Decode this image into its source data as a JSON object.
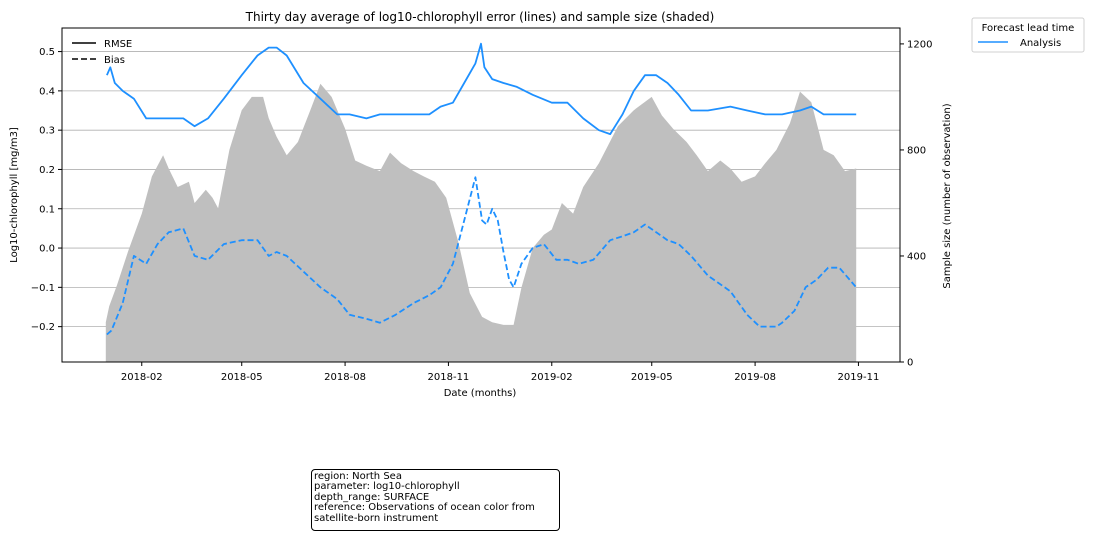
{
  "chart_data": {
    "type": "line",
    "title": "Thirty day average of log10-chlorophyll error (lines) and sample size (shaded)",
    "xlabel": "Date (months)",
    "ylabel": "Log10-chlorophyll [mg/m3]",
    "y2label": "Sample size (number of observation)",
    "x_ticks": [
      "2018-02",
      "2018-05",
      "2018-08",
      "2018-11",
      "2019-02",
      "2019-05",
      "2019-08",
      "2019-11"
    ],
    "y_ticks": [
      "−0.2",
      "−0.1",
      "0.0",
      "0.1",
      "0.2",
      "0.3",
      "0.4",
      "0.5"
    ],
    "y2_ticks": [
      "0",
      "400",
      "800",
      "1200"
    ],
    "ylim": [
      -0.29,
      0.56
    ],
    "y2lim": [
      0,
      1260
    ],
    "xlim": [
      "2017-11-22",
      "2019-12-08"
    ],
    "grid": "y-major",
    "style_legend": [
      {
        "label": "RMSE",
        "linestyle": "solid"
      },
      {
        "label": "Bias",
        "linestyle": "dashed"
      }
    ],
    "lead_legend_title": "Forecast lead time",
    "lead_legend": [
      {
        "label": "Analysis",
        "color": "#1e90ff"
      }
    ],
    "colors": {
      "line": "#1e90ff",
      "sample_fill": "#bfbfbf"
    },
    "series": [
      {
        "name": "RMSE",
        "x": [
          "2018-01-01",
          "2018-01-04",
          "2018-01-08",
          "2018-01-15",
          "2018-01-25",
          "2018-02-05",
          "2018-02-15",
          "2018-02-25",
          "2018-03-10",
          "2018-03-20",
          "2018-04-01",
          "2018-04-15",
          "2018-05-01",
          "2018-05-15",
          "2018-05-25",
          "2018-06-01",
          "2018-06-10",
          "2018-06-25",
          "2018-07-10",
          "2018-07-25",
          "2018-08-05",
          "2018-08-20",
          "2018-09-01",
          "2018-09-15",
          "2018-10-01",
          "2018-10-15",
          "2018-10-25",
          "2018-11-05",
          "2018-11-15",
          "2018-11-25",
          "2018-11-30",
          "2018-12-03",
          "2018-12-10",
          "2018-12-20",
          "2019-01-01",
          "2019-01-15",
          "2019-02-01",
          "2019-02-15",
          "2019-03-01",
          "2019-03-15",
          "2019-03-25",
          "2019-04-05",
          "2019-04-15",
          "2019-04-25",
          "2019-05-05",
          "2019-05-15",
          "2019-05-25",
          "2019-06-05",
          "2019-06-20",
          "2019-07-10",
          "2019-07-25",
          "2019-08-10",
          "2019-08-25",
          "2019-09-10",
          "2019-09-20",
          "2019-10-01",
          "2019-10-15",
          "2019-10-30"
        ],
        "values": [
          0.44,
          0.46,
          0.42,
          0.4,
          0.38,
          0.33,
          0.33,
          0.33,
          0.33,
          0.31,
          0.33,
          0.38,
          0.44,
          0.49,
          0.51,
          0.51,
          0.49,
          0.42,
          0.38,
          0.34,
          0.34,
          0.33,
          0.34,
          0.34,
          0.34,
          0.34,
          0.36,
          0.37,
          0.42,
          0.47,
          0.52,
          0.46,
          0.43,
          0.42,
          0.41,
          0.39,
          0.37,
          0.37,
          0.33,
          0.3,
          0.29,
          0.34,
          0.4,
          0.44,
          0.44,
          0.42,
          0.39,
          0.35,
          0.35,
          0.36,
          0.35,
          0.34,
          0.34,
          0.35,
          0.36,
          0.34,
          0.34,
          0.34
        ]
      },
      {
        "name": "Bias",
        "x": [
          "2018-01-01",
          "2018-01-05",
          "2018-01-15",
          "2018-01-25",
          "2018-02-05",
          "2018-02-15",
          "2018-02-25",
          "2018-03-10",
          "2018-03-20",
          "2018-04-01",
          "2018-04-15",
          "2018-05-01",
          "2018-05-15",
          "2018-05-25",
          "2018-06-01",
          "2018-06-10",
          "2018-06-25",
          "2018-07-10",
          "2018-07-25",
          "2018-08-05",
          "2018-08-20",
          "2018-09-01",
          "2018-09-15",
          "2018-10-01",
          "2018-10-15",
          "2018-10-25",
          "2018-11-05",
          "2018-11-15",
          "2018-11-25",
          "2018-12-01",
          "2018-12-05",
          "2018-12-10",
          "2018-12-15",
          "2018-12-20",
          "2018-12-25",
          "2018-12-29",
          "2019-01-05",
          "2019-01-15",
          "2019-01-25",
          "2019-02-05",
          "2019-02-15",
          "2019-02-25",
          "2019-03-10",
          "2019-03-25",
          "2019-04-05",
          "2019-04-15",
          "2019-04-25",
          "2019-05-05",
          "2019-05-15",
          "2019-05-25",
          "2019-06-05",
          "2019-06-20",
          "2019-07-10",
          "2019-07-25",
          "2019-08-05",
          "2019-08-20",
          "2019-08-25",
          "2019-09-05",
          "2019-09-15",
          "2019-09-25",
          "2019-10-05",
          "2019-10-15",
          "2019-10-30"
        ],
        "values": [
          -0.22,
          -0.21,
          -0.14,
          -0.02,
          -0.04,
          0.01,
          0.04,
          0.05,
          -0.02,
          -0.03,
          0.01,
          0.02,
          0.02,
          -0.02,
          -0.01,
          -0.02,
          -0.06,
          -0.1,
          -0.13,
          -0.17,
          -0.18,
          -0.19,
          -0.17,
          -0.14,
          -0.12,
          -0.1,
          -0.04,
          0.07,
          0.18,
          0.07,
          0.06,
          0.1,
          0.07,
          -0.01,
          -0.08,
          -0.1,
          -0.04,
          0.0,
          0.01,
          -0.03,
          -0.03,
          -0.04,
          -0.03,
          0.02,
          0.03,
          0.04,
          0.06,
          0.04,
          0.02,
          0.01,
          -0.02,
          -0.07,
          -0.11,
          -0.17,
          -0.2,
          -0.2,
          -0.19,
          -0.16,
          -0.1,
          -0.08,
          -0.05,
          -0.05,
          -0.1
        ]
      },
      {
        "name": "Sample size",
        "axis": "right",
        "x": [
          "2017-12-31",
          "2018-01-03",
          "2018-01-10",
          "2018-01-20",
          "2018-02-01",
          "2018-02-10",
          "2018-02-20",
          "2018-02-25",
          "2018-03-05",
          "2018-03-15",
          "2018-03-20",
          "2018-03-30",
          "2018-04-05",
          "2018-04-10",
          "2018-04-20",
          "2018-05-01",
          "2018-05-10",
          "2018-05-20",
          "2018-05-25",
          "2018-06-01",
          "2018-06-10",
          "2018-06-20",
          "2018-07-01",
          "2018-07-10",
          "2018-07-20",
          "2018-08-01",
          "2018-08-10",
          "2018-08-20",
          "2018-09-01",
          "2018-09-10",
          "2018-09-20",
          "2018-10-01",
          "2018-10-10",
          "2018-10-20",
          "2018-10-30",
          "2018-11-10",
          "2018-11-20",
          "2018-12-01",
          "2018-12-10",
          "2018-12-20",
          "2018-12-29",
          "2019-01-05",
          "2019-01-15",
          "2019-01-25",
          "2019-02-01",
          "2019-02-10",
          "2019-02-20",
          "2019-03-01",
          "2019-03-15",
          "2019-04-01",
          "2019-04-15",
          "2019-05-01",
          "2019-05-10",
          "2019-05-20",
          "2019-06-01",
          "2019-06-10",
          "2019-06-20",
          "2019-07-01",
          "2019-07-10",
          "2019-07-20",
          "2019-08-01",
          "2019-08-10",
          "2019-08-20",
          "2019-09-01",
          "2019-09-10",
          "2019-09-20",
          "2019-10-01",
          "2019-10-10",
          "2019-10-20",
          "2019-10-30"
        ],
        "values": [
          150,
          210,
          290,
          420,
          560,
          700,
          780,
          730,
          660,
          680,
          600,
          650,
          620,
          580,
          800,
          950,
          1000,
          1000,
          920,
          850,
          780,
          830,
          950,
          1050,
          1000,
          880,
          760,
          740,
          720,
          790,
          750,
          720,
          700,
          680,
          620,
          450,
          260,
          170,
          150,
          140,
          140,
          280,
          430,
          480,
          500,
          600,
          560,
          660,
          750,
          890,
          950,
          1000,
          930,
          880,
          830,
          780,
          720,
          760,
          730,
          680,
          700,
          750,
          800,
          900,
          1020,
          980,
          800,
          780,
          720,
          730
        ]
      }
    ]
  },
  "info_box": {
    "lines": [
      "region: North Sea",
      "parameter: log10-chlorophyll",
      "depth_range: SURFACE",
      "reference: Observations of ocean color from",
      "satellite-born instrument"
    ]
  }
}
